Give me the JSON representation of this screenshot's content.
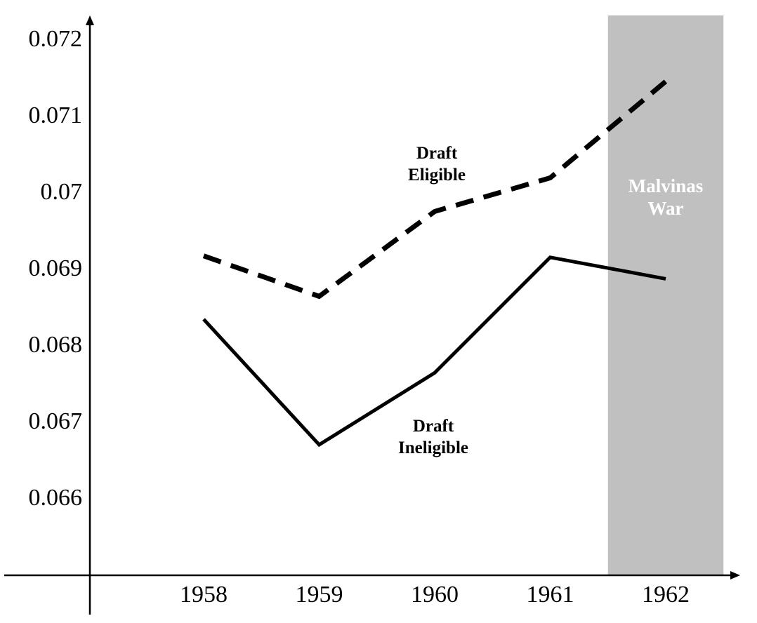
{
  "chart_data": {
    "type": "line",
    "title": "",
    "xlabel": "",
    "ylabel": "",
    "categories": [
      "1958",
      "1959",
      "1960",
      "1961",
      "1962"
    ],
    "x": [
      1958,
      1959,
      1960,
      1961,
      1962
    ],
    "yticks": [
      "0.066",
      "0.067",
      "0.068",
      "0.069",
      "0.07",
      "0.071",
      "0.072"
    ],
    "ylim": [
      0.0651,
      0.0725
    ],
    "grid": false,
    "series": [
      {
        "name": "Draft Eligible",
        "label_lines": [
          "Draft",
          "Eligible"
        ],
        "style": "dashed",
        "color": "#000000",
        "values": [
          0.06915,
          0.06862,
          0.06973,
          0.07017,
          0.07143
        ]
      },
      {
        "name": "Draft Ineligible",
        "label_lines": [
          "Draft",
          "Ineligible"
        ],
        "style": "solid",
        "color": "#000000",
        "values": [
          0.06832,
          0.06668,
          0.06762,
          0.06913,
          0.06885
        ]
      }
    ],
    "shaded_region": {
      "label_lines": [
        "Malvinas",
        "War"
      ],
      "x_from": 1961.5,
      "x_to": 1962.5,
      "color": "#c0c0c0"
    }
  }
}
